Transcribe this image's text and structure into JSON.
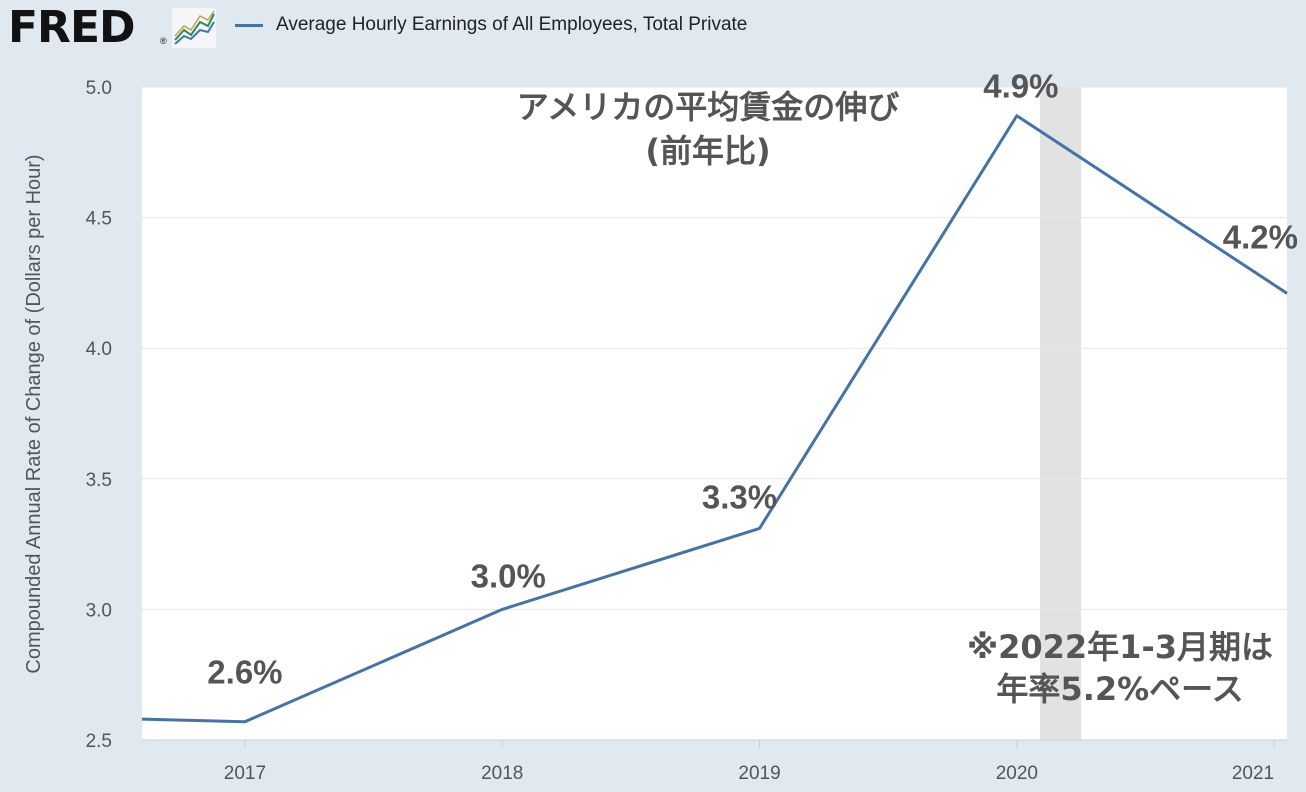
{
  "header": {
    "logo": "FRED",
    "logo_mark": "®",
    "legend_label": "Average Hourly Earnings of All Employees, Total Private"
  },
  "colors": {
    "background": "#e1e9f0",
    "plot_background": "#ffffff",
    "series_line": "#4572a7",
    "recession_band": "#e2e2e2",
    "annotation_text": "#555555"
  },
  "chart_data": {
    "type": "line",
    "title": "アメリカの平均賃金の伸び",
    "subtitle": "(前年比)",
    "xlabel": "",
    "ylabel": "Compounded Annual Rate of Change of (Dollars per Hour)",
    "xlim": [
      2016.6,
      2021.05
    ],
    "ylim": [
      2.5,
      5.0
    ],
    "x_ticks": [
      "2017",
      "2018",
      "2019",
      "2020",
      "2021"
    ],
    "y_ticks": [
      "2.5",
      "3.0",
      "3.5",
      "4.0",
      "4.5",
      "5.0"
    ],
    "grid": true,
    "legend_position": "top",
    "recession_shading": {
      "start": 2020.09,
      "end": 2020.25
    },
    "series": [
      {
        "name": "Average Hourly Earnings of All Employees, Total Private",
        "x": [
          2016.6,
          2017,
          2018,
          2019,
          2020,
          2021.05
        ],
        "values": [
          2.58,
          2.57,
          3.0,
          3.31,
          4.89,
          4.21
        ]
      }
    ],
    "data_labels": [
      {
        "text": "2.6%",
        "x": 2017,
        "y": 2.57
      },
      {
        "text": "3.0%",
        "x": 2018,
        "y": 3.0
      },
      {
        "text": "3.3%",
        "x": 2019,
        "y": 3.31
      },
      {
        "text": "4.9%",
        "x": 2020,
        "y": 4.89
      },
      {
        "text": "4.2%",
        "x": 2021,
        "y": 4.21
      }
    ],
    "annotation": [
      "※2022年1-3月期は",
      "年率5.2%ペース"
    ]
  }
}
